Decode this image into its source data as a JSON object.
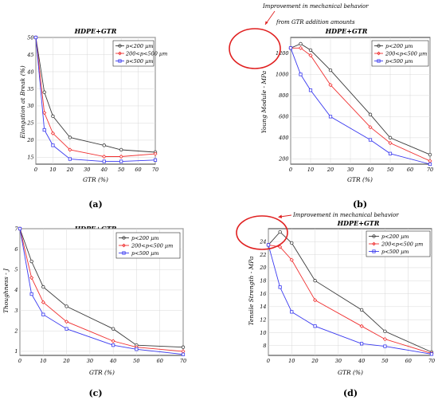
{
  "colors": {
    "series_0": "#3a3a3a",
    "series_1": "#f03030",
    "series_2": "#3a3af0",
    "annotation": "#e02020"
  },
  "chart_data": [
    {
      "type": "line",
      "title": "HDPE+GTR",
      "xlabel": "GTR (%)",
      "ylabel": "Elongation at Break (%)",
      "caption": "(a)",
      "xlim": [
        0,
        70
      ],
      "ylim": [
        13,
        50
      ],
      "xticks": [
        0,
        10,
        20,
        30,
        40,
        50,
        60,
        70
      ],
      "yticks": [
        15,
        20,
        25,
        30,
        35,
        40,
        45,
        50
      ],
      "legend": "top-right",
      "series": [
        {
          "name": "p<200  µm",
          "x": [
            0,
            5,
            10,
            20,
            40,
            50,
            70
          ],
          "y": [
            50,
            34,
            27,
            20.8,
            18.5,
            17.2,
            16.5
          ]
        },
        {
          "name": "200<p<500  µm",
          "x": [
            0,
            5,
            10,
            20,
            40,
            50,
            70
          ],
          "y": [
            50,
            28,
            22,
            17.2,
            15.2,
            15.2,
            16
          ]
        },
        {
          "name": "p<500  µm",
          "x": [
            0,
            5,
            10,
            20,
            40,
            50,
            70
          ],
          "y": [
            50,
            23,
            18.5,
            14.5,
            13.8,
            13.8,
            14.2
          ]
        }
      ]
    },
    {
      "type": "line",
      "title": "HDPE+GTR",
      "xlabel": "GTR (%)",
      "ylabel": "Young Module - MPa",
      "caption": "(b)",
      "xlim": [
        0,
        70
      ],
      "ylim": [
        150,
        1350
      ],
      "xticks": [
        0,
        10,
        20,
        30,
        40,
        50,
        60,
        70
      ],
      "yticks": [
        200,
        400,
        600,
        800,
        1000,
        1200
      ],
      "legend": "top-right",
      "annotations": [
        "Improvement in mechanical behavior",
        "from GTR addition amounts"
      ],
      "series": [
        {
          "name": "p<200  µm",
          "x": [
            0,
            5,
            10,
            20,
            40,
            50,
            70
          ],
          "y": [
            1250,
            1290,
            1230,
            1040,
            620,
            400,
            240
          ]
        },
        {
          "name": "200<p<500  µm",
          "x": [
            0,
            5,
            10,
            20,
            40,
            50,
            70
          ],
          "y": [
            1250,
            1250,
            1180,
            900,
            500,
            350,
            180
          ]
        },
        {
          "name": "p<500  µm",
          "x": [
            0,
            5,
            10,
            20,
            40,
            50,
            70
          ],
          "y": [
            1250,
            1000,
            850,
            600,
            380,
            250,
            150
          ]
        }
      ]
    },
    {
      "type": "line",
      "title": "HDPE+GTR",
      "xlabel": "GTR (%)",
      "ylabel": "Thoughness - J",
      "caption": "(c)",
      "xlim": [
        0,
        70
      ],
      "ylim": [
        0.8,
        7
      ],
      "xticks": [
        0,
        10,
        20,
        30,
        40,
        50,
        60,
        70
      ],
      "yticks": [
        1,
        2,
        3,
        4,
        5,
        6,
        7
      ],
      "legend": "top-right",
      "series": [
        {
          "name": "p<200  µm",
          "x": [
            0,
            5,
            10,
            20,
            40,
            50,
            70
          ],
          "y": [
            7,
            5.4,
            4.15,
            3.2,
            2.1,
            1.3,
            1.2
          ]
        },
        {
          "name": "200<p<500  µm",
          "x": [
            0,
            5,
            10,
            20,
            40,
            50,
            70
          ],
          "y": [
            7,
            4.6,
            3.4,
            2.45,
            1.5,
            1.2,
            1.0
          ]
        },
        {
          "name": "p<500  µm",
          "x": [
            0,
            5,
            10,
            20,
            40,
            50,
            70
          ],
          "y": [
            7,
            3.8,
            2.8,
            2.1,
            1.3,
            1.1,
            0.85
          ]
        }
      ]
    },
    {
      "type": "line",
      "title": "HDPE+GTR",
      "xlabel": "GTR (%)",
      "ylabel": "Tensile Strength - MPa",
      "caption": "(d)",
      "xlim": [
        0,
        70
      ],
      "ylim": [
        6.5,
        26
      ],
      "xticks": [
        0,
        10,
        20,
        30,
        40,
        50,
        60,
        70
      ],
      "yticks": [
        8,
        10,
        12,
        14,
        16,
        18,
        20,
        22,
        24
      ],
      "legend": "top-right",
      "annotations": [
        "Improvement in mechanical behavior"
      ],
      "series": [
        {
          "name": "p<200  µm",
          "x": [
            0,
            5,
            10,
            20,
            40,
            50,
            70
          ],
          "y": [
            23.5,
            25.5,
            23.8,
            18,
            13.5,
            10.2,
            7
          ]
        },
        {
          "name": "200<p<500  µm",
          "x": [
            0,
            5,
            10,
            20,
            40,
            50,
            70
          ],
          "y": [
            23.5,
            23.2,
            21.2,
            15,
            11,
            9,
            6.8
          ]
        },
        {
          "name": "p<500  µm",
          "x": [
            0,
            5,
            10,
            20,
            40,
            50,
            70
          ],
          "y": [
            23.5,
            17,
            13.2,
            11,
            8.3,
            7.9,
            6.7
          ]
        }
      ]
    }
  ]
}
